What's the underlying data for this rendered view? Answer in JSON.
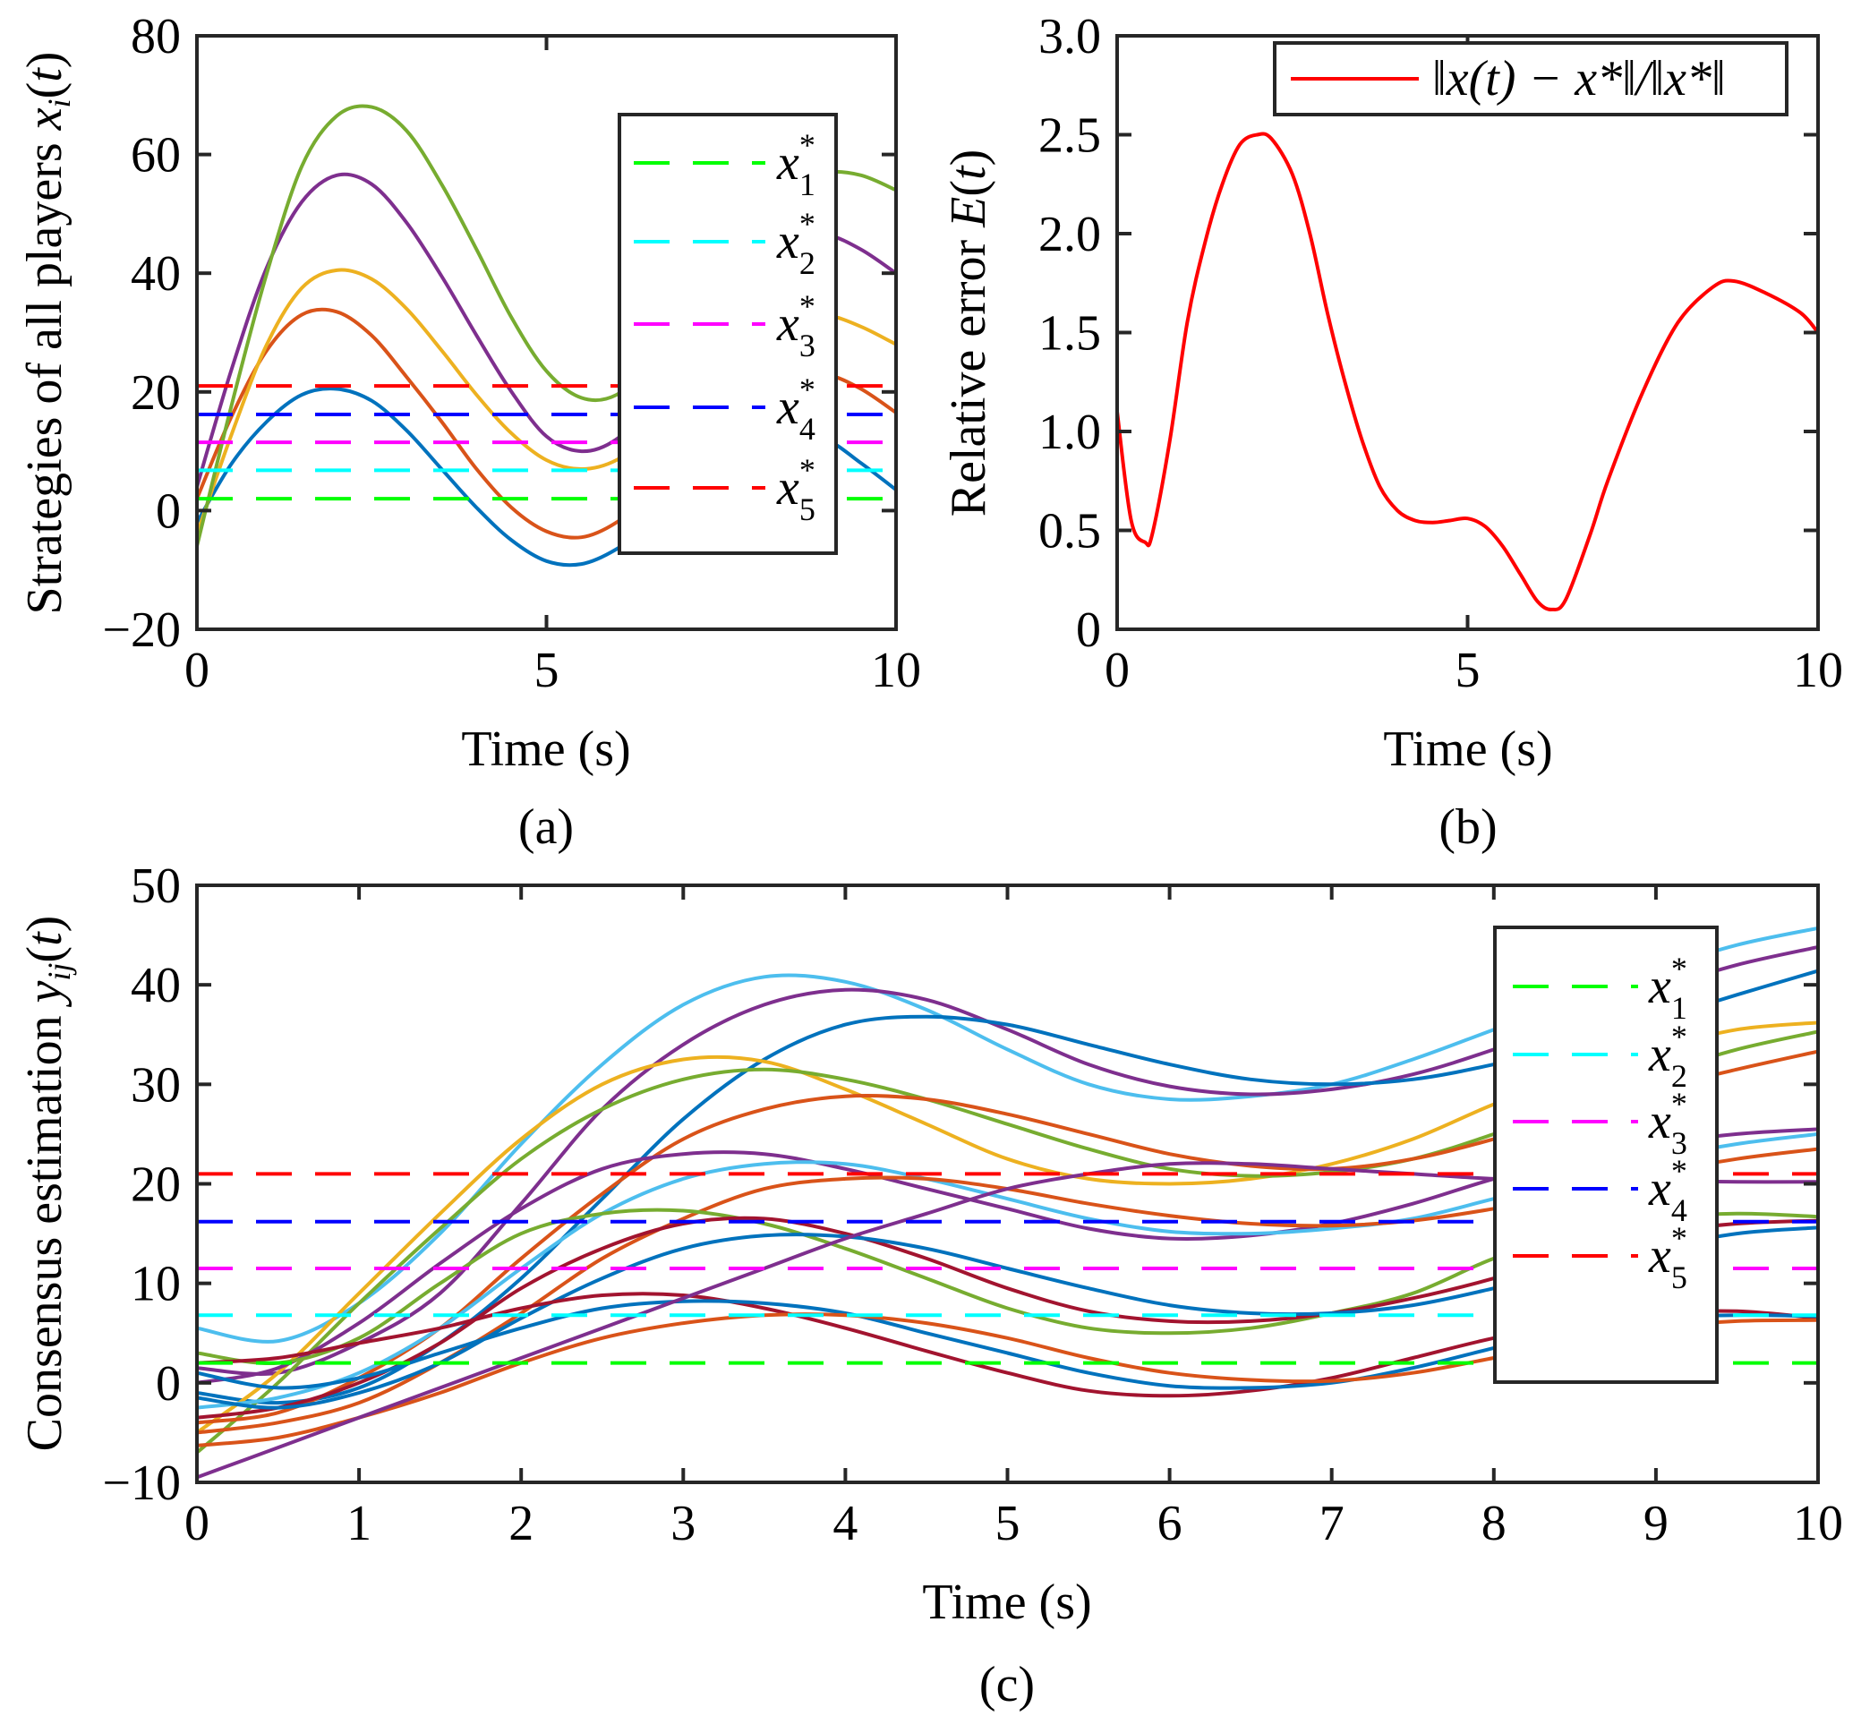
{
  "figure": {
    "panel_labels": [
      "(a)",
      "(b)",
      "(c)"
    ]
  },
  "chart_data": [
    {
      "id": "a",
      "type": "line",
      "title": "",
      "xlabel": "Time (s)",
      "ylabel": "Strategies of all players x_i(t)",
      "ylabel_parts": [
        "Strategies of all players ",
        "x",
        "i",
        "(",
        "t",
        ")"
      ],
      "xlim": [
        0,
        10
      ],
      "ylim": [
        -20,
        80
      ],
      "xticks": [
        0,
        5,
        10
      ],
      "xtick_labels": [
        "0",
        "5",
        "10"
      ],
      "yticks": [
        -20,
        0,
        20,
        40,
        60,
        80
      ],
      "ytick_labels": [
        "−20",
        "0",
        "20",
        "40",
        "60",
        "80"
      ],
      "grid": false,
      "legend_position": "right",
      "legend": [
        {
          "label": "x",
          "sub": "1",
          "sup": "*",
          "color": "#00ff00"
        },
        {
          "label": "x",
          "sub": "2",
          "sup": "*",
          "color": "#00ffff"
        },
        {
          "label": "x",
          "sub": "3",
          "sup": "*",
          "color": "#ff00ff"
        },
        {
          "label": "x",
          "sub": "4",
          "sup": "*",
          "color": "#0000ff"
        },
        {
          "label": "x",
          "sub": "5",
          "sup": "*",
          "color": "#ff0000"
        }
      ],
      "reference_lines": [
        {
          "name": "x1*",
          "value": 2,
          "color": "#00ff00"
        },
        {
          "name": "x2*",
          "value": 6.8,
          "color": "#00ffff"
        },
        {
          "name": "x3*",
          "value": 11.5,
          "color": "#ff00ff"
        },
        {
          "name": "x4*",
          "value": 16.2,
          "color": "#0000ff"
        },
        {
          "name": "x5*",
          "value": 21,
          "color": "#ff0000"
        }
      ],
      "x": [
        0,
        0.5,
        1,
        1.5,
        2,
        2.5,
        3,
        3.5,
        4,
        4.5,
        5,
        5.5,
        6,
        6.5,
        7,
        7.5,
        8,
        8.5,
        9,
        9.5,
        10
      ],
      "series": [
        {
          "name": "x1",
          "color": "#0072bd",
          "values": [
            -2,
            8,
            15,
            19.5,
            20.5,
            18.5,
            13.5,
            7,
            0.5,
            -5,
            -8.5,
            -9,
            -6.5,
            -2,
            3,
            8,
            11.5,
            13,
            12,
            8,
            3.5
          ]
        },
        {
          "name": "x2",
          "color": "#d95319",
          "values": [
            2,
            16,
            27,
            33,
            33.5,
            29.5,
            22.5,
            15,
            7,
            0.5,
            -3.5,
            -4.5,
            -2,
            3,
            9,
            15,
            20,
            23,
            23,
            20.5,
            16.5
          ]
        },
        {
          "name": "x3",
          "color": "#edb120",
          "values": [
            -4,
            13,
            28,
            37.5,
            40.5,
            39,
            34,
            27,
            19.5,
            13,
            8.5,
            7,
            8.5,
            13,
            19,
            25.5,
            30.5,
            33,
            33,
            31,
            28
          ]
        },
        {
          "name": "x4",
          "color": "#7e2f8e",
          "values": [
            4,
            24,
            41,
            52,
            56.5,
            55,
            48.5,
            39.5,
            29.5,
            20,
            12.5,
            10,
            12,
            18,
            26.5,
            35,
            42,
            46,
            46.5,
            44,
            40
          ]
        },
        {
          "name": "x5",
          "color": "#77ac30",
          "values": [
            -6,
            18,
            40,
            58,
            66.5,
            68,
            64,
            55,
            44,
            32.5,
            23.5,
            19,
            19.5,
            25,
            33,
            42,
            49.5,
            55,
            57,
            56.5,
            54
          ]
        }
      ]
    },
    {
      "id": "b",
      "type": "line",
      "title": "",
      "xlabel": "Time (s)",
      "ylabel": "Relative error E(t)",
      "ylabel_parts": [
        "Relative error ",
        "E",
        "(",
        "t",
        ")"
      ],
      "xlim": [
        0,
        10
      ],
      "ylim": [
        0,
        3
      ],
      "xticks": [
        0,
        5,
        10
      ],
      "xtick_labels": [
        "0",
        "5",
        "10"
      ],
      "yticks": [
        0,
        0.5,
        1,
        1.5,
        2,
        2.5,
        3
      ],
      "ytick_labels": [
        "0",
        "0.5",
        "1.0",
        "1.5",
        "2.0",
        "2.5",
        "3.0"
      ],
      "grid": false,
      "legend_position": "top-right",
      "legend": [
        {
          "label": "‖x(t) − x*‖/‖x*‖",
          "color": "#ff0000"
        }
      ],
      "x": [
        0,
        0.2,
        0.4,
        0.5,
        0.75,
        1,
        1.25,
        1.5,
        1.75,
        2,
        2.2,
        2.5,
        2.75,
        3,
        3.25,
        3.5,
        3.75,
        4,
        4.25,
        4.5,
        4.75,
        5,
        5.25,
        5.5,
        5.75,
        6,
        6.2,
        6.4,
        6.75,
        7,
        7.5,
        8,
        8.5,
        8.8,
        9.25,
        9.75,
        10
      ],
      "series": [
        {
          "name": "E(t)",
          "color": "#ff0000",
          "values": [
            1.1,
            0.55,
            0.44,
            0.48,
            0.95,
            1.55,
            1.95,
            2.25,
            2.45,
            2.5,
            2.48,
            2.3,
            2.0,
            1.6,
            1.25,
            0.95,
            0.72,
            0.6,
            0.55,
            0.54,
            0.55,
            0.56,
            0.52,
            0.42,
            0.28,
            0.14,
            0.1,
            0.15,
            0.48,
            0.75,
            1.2,
            1.55,
            1.73,
            1.76,
            1.7,
            1.6,
            1.5
          ]
        }
      ]
    },
    {
      "id": "c",
      "type": "line",
      "title": "",
      "xlabel": "Time (s)",
      "ylabel": "Consensus estimation y_ij(t)",
      "ylabel_parts": [
        "Consensus estimation ",
        "y",
        "ij",
        "(",
        "t",
        ")"
      ],
      "xlim": [
        0,
        10
      ],
      "ylim": [
        -10,
        50
      ],
      "xticks": [
        0,
        1,
        2,
        3,
        4,
        5,
        6,
        7,
        8,
        9,
        10
      ],
      "xtick_labels": [
        "0",
        "1",
        "2",
        "3",
        "4",
        "5",
        "6",
        "7",
        "8",
        "9",
        "10"
      ],
      "yticks": [
        -10,
        0,
        10,
        20,
        30,
        40,
        50
      ],
      "ytick_labels": [
        "−10",
        "0",
        "10",
        "20",
        "30",
        "40",
        "50"
      ],
      "grid": false,
      "legend_position": "right",
      "legend": [
        {
          "label": "x",
          "sub": "1",
          "sup": "*",
          "color": "#00ff00"
        },
        {
          "label": "x",
          "sub": "2",
          "sup": "*",
          "color": "#00ffff"
        },
        {
          "label": "x",
          "sub": "3",
          "sup": "*",
          "color": "#ff00ff"
        },
        {
          "label": "x",
          "sub": "4",
          "sup": "*",
          "color": "#0000ff"
        },
        {
          "label": "x",
          "sub": "5",
          "sup": "*",
          "color": "#ff0000"
        }
      ],
      "reference_lines": [
        {
          "name": "x1*",
          "value": 2,
          "color": "#00ff00"
        },
        {
          "name": "x2*",
          "value": 6.8,
          "color": "#00ffff"
        },
        {
          "name": "x3*",
          "value": 11.5,
          "color": "#ff00ff"
        },
        {
          "name": "x4*",
          "value": 16.2,
          "color": "#0000ff"
        },
        {
          "name": "x5*",
          "value": 21,
          "color": "#ff0000"
        }
      ],
      "x": [
        0,
        0.5,
        1,
        1.5,
        2,
        2.5,
        3,
        3.5,
        4,
        4.5,
        5,
        5.5,
        6,
        6.5,
        7,
        7.5,
        8,
        8.5,
        9,
        9.5,
        10
      ],
      "series": [
        {
          "name": "y1",
          "color": "#4dbeee",
          "values": [
            5.5,
            4.2,
            8,
            15,
            24,
            32,
            38,
            40.8,
            40.3,
            37.5,
            33.5,
            30,
            28.5,
            28.8,
            30,
            32.5,
            35.5,
            38.5,
            41.5,
            44,
            45.7
          ]
        },
        {
          "name": "y2",
          "color": "#7e2f8e",
          "values": [
            1.5,
            1,
            4,
            9,
            18,
            27.5,
            34,
            38,
            39.5,
            38.5,
            35.5,
            32,
            29.8,
            29,
            29.5,
            31,
            33.5,
            36.5,
            39.5,
            42,
            43.8
          ]
        },
        {
          "name": "y3",
          "color": "#0072bd",
          "values": [
            -1,
            -2,
            -0.5,
            4,
            10.5,
            18.5,
            26.5,
            32.5,
            36,
            36.8,
            36,
            34,
            32,
            30.5,
            30,
            30.5,
            32,
            34,
            36.5,
            39,
            41.4
          ]
        },
        {
          "name": "y4",
          "color": "#edb120",
          "values": [
            -5,
            1,
            9,
            17,
            24.5,
            30,
            32.5,
            32.3,
            29.5,
            26,
            22.5,
            20.5,
            20,
            20.5,
            22,
            24.5,
            28,
            31,
            33.5,
            35.5,
            36.2
          ]
        },
        {
          "name": "y5",
          "color": "#77ac30",
          "values": [
            -7,
            0,
            8,
            15.5,
            22.5,
            27.5,
            30.5,
            31.5,
            30.5,
            28.5,
            26,
            23.5,
            21.5,
            20.8,
            21.2,
            22.5,
            25,
            28,
            31,
            33.5,
            35.3
          ]
        },
        {
          "name": "y6",
          "color": "#d95319",
          "values": [
            -4,
            -3,
            0.5,
            5.5,
            12.5,
            19,
            24.5,
            27.5,
            28.8,
            28.5,
            27,
            25,
            23,
            21.8,
            21.5,
            22.5,
            24.5,
            27,
            29.5,
            31.5,
            33.3
          ]
        },
        {
          "name": "y7",
          "color": "#7e2f8e",
          "values": [
            0,
            1.5,
            6,
            12,
            17.5,
            21.5,
            23,
            23,
            21.5,
            19.5,
            17.5,
            15.5,
            14.5,
            14.8,
            16,
            18,
            20.5,
            22.5,
            24,
            25,
            25.5
          ]
        },
        {
          "name": "y8",
          "color": "#4dbeee",
          "values": [
            -2.5,
            -1.5,
            1,
            5.5,
            11.5,
            17,
            20.5,
            22,
            22,
            20.5,
            18.5,
            16.5,
            15.2,
            15,
            15.5,
            16.5,
            18.5,
            20.5,
            22.5,
            24,
            25
          ]
        },
        {
          "name": "y9",
          "color": "#d95319",
          "values": [
            -5,
            -4,
            -2,
            2,
            7,
            12.5,
            16.5,
            19.5,
            20.5,
            20.5,
            19.5,
            18,
            16.8,
            16,
            15.8,
            16.3,
            17.5,
            19,
            21,
            22.5,
            23.5
          ]
        },
        {
          "name": "y10",
          "color": "#77ac30",
          "values": [
            3,
            2,
            4.5,
            10,
            15,
            17,
            17.3,
            16,
            13.5,
            10.5,
            7.5,
            5.5,
            5,
            5.5,
            7,
            9,
            12.5,
            15,
            16.5,
            17,
            16.7
          ]
        },
        {
          "name": "y11",
          "color": "#a2142f",
          "values": [
            -3.5,
            -2.5,
            0,
            4,
            9.5,
            13.5,
            16,
            16.5,
            15,
            12.5,
            9.5,
            7.2,
            6.2,
            6.2,
            7,
            8.5,
            10.5,
            13,
            15,
            16,
            16.3
          ]
        },
        {
          "name": "y12",
          "color": "#0072bd",
          "values": [
            -1.5,
            -2.5,
            -1,
            2,
            6.5,
            10.5,
            13.5,
            14.8,
            14.7,
            13.5,
            11.5,
            9.5,
            7.8,
            7,
            7,
            7.8,
            9.5,
            11.5,
            13.5,
            15,
            15.6
          ]
        },
        {
          "name": "y13",
          "color": "#a2142f",
          "values": [
            2,
            2.5,
            4,
            5.5,
            7.5,
            8.8,
            8.8,
            7.5,
            5.5,
            3.2,
            1,
            -0.8,
            -1.3,
            -0.8,
            0.5,
            2.5,
            4.5,
            6,
            7,
            7.2,
            6.5
          ]
        },
        {
          "name": "y14",
          "color": "#0072bd",
          "values": [
            1,
            -0.5,
            0.5,
            3,
            5.5,
            7.5,
            8.2,
            8,
            7,
            5,
            3,
            1,
            -0.3,
            -0.5,
            0,
            1.5,
            3.5,
            5.5,
            6.5,
            6.8,
            6.7
          ]
        },
        {
          "name": "y15",
          "color": "#d95319",
          "values": [
            -6.3,
            -5.5,
            -3.5,
            -1,
            2,
            4.5,
            6,
            6.8,
            6.8,
            6,
            4.5,
            2.5,
            1,
            0.3,
            0.2,
            1,
            2.5,
            4,
            5.5,
            6.2,
            6.3
          ]
        },
        {
          "name": "y16",
          "color": "#7e2f8e",
          "values": [
            -9.5,
            -6.5,
            -3.5,
            -0.5,
            2.5,
            5.5,
            8.5,
            11.5,
            14.5,
            17,
            19.5,
            21,
            22,
            22,
            21.5,
            21,
            20.5,
            20.3,
            20.3,
            20.2,
            20.2
          ]
        }
      ]
    }
  ]
}
